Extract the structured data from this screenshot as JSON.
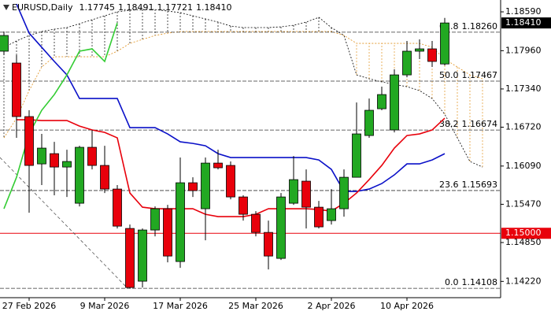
{
  "chart_data": {
    "type": "candlestick",
    "header": {
      "symbol": "EURUSD,Daily",
      "open": "1.17745",
      "high": "1.18491",
      "low": "1.17721",
      "close": "1.18410"
    },
    "categories": [
      null,
      null,
      "27 Feb 2026",
      null,
      null,
      null,
      null,
      null,
      "9 Mar 2026",
      null,
      null,
      null,
      null,
      null,
      "17 Mar 2026",
      null,
      null,
      null,
      null,
      null,
      "25 Mar 2026",
      null,
      null,
      null,
      null,
      null,
      "2 Apr 2026",
      null,
      null,
      null,
      null,
      null,
      "10 Apr 2026",
      null,
      null,
      null,
      null,
      null,
      null
    ],
    "open": [
      1.17952,
      1.1776,
      1.16892,
      1.16125,
      1.16291,
      1.16074,
      1.15487,
      1.16394,
      1.161,
      1.15717,
      1.15078,
      1.14223,
      1.15053,
      1.15398,
      1.14542,
      1.15819,
      1.15398,
      1.16138,
      1.161,
      1.15589,
      1.15308,
      1.15014,
      1.14593,
      1.15487,
      1.15845,
      1.15423,
      1.15206,
      1.15398,
      1.15908,
      1.16585,
      1.17019,
      1.16675,
      1.17568,
      1.17952,
      1.1799,
      1.17745,
      null,
      null,
      null
    ],
    "high": [
      1.18271,
      1.17888,
      1.16994,
      1.16611,
      1.16483,
      1.16355,
      1.16419,
      1.16675,
      1.16419,
      1.15781,
      1.15142,
      1.15078,
      1.15436,
      1.15461,
      1.16228,
      1.15908,
      1.16228,
      1.16355,
      1.16164,
      1.15615,
      1.15359,
      1.15206,
      1.15653,
      1.16253,
      1.16036,
      1.15525,
      1.15717,
      1.16036,
      1.17121,
      1.17185,
      1.17377,
      1.17658,
      1.18118,
      1.18143,
      1.18118,
      1.18491,
      null,
      null,
      null
    ],
    "low": [
      1.17888,
      1.16547,
      1.15334,
      1.15781,
      1.15615,
      1.15589,
      1.15436,
      1.16036,
      1.15653,
      1.15078,
      1.14108,
      1.14121,
      1.1495,
      1.14529,
      1.1444,
      1.15589,
      1.14887,
      1.16036,
      1.15551,
      1.15206,
      1.1495,
      1.14414,
      1.14567,
      1.15461,
      1.15078,
      1.15078,
      1.15142,
      1.1527,
      1.15908,
      1.16547,
      1.16994,
      1.16636,
      1.1753,
      1.17824,
      1.17696,
      1.17721,
      null,
      null,
      null
    ],
    "close": [
      1.18207,
      1.16892,
      1.161,
      1.16381,
      1.16074,
      1.16164,
      1.16394,
      1.161,
      1.15717,
      1.15116,
      1.14121,
      1.15053,
      1.15398,
      1.14631,
      1.15819,
      1.15691,
      1.16138,
      1.16062,
      1.15589,
      1.15308,
      1.15014,
      1.14631,
      1.15589,
      1.1587,
      1.15423,
      1.15104,
      1.15398,
      1.15908,
      1.16611,
      1.16994,
      1.17249,
      1.17568,
      1.17952,
      1.1799,
      1.17786,
      1.1841,
      null,
      null,
      null
    ],
    "up_color": "#22a822",
    "down_color": "#e8000b",
    "indicators": [
      {
        "color": "#0a10c8",
        "values": [
          null,
          1.18718,
          1.18245,
          1.18015,
          1.17786,
          1.17568,
          1.17185,
          1.17185,
          1.17185,
          1.17185,
          1.16713,
          1.16713,
          1.16713,
          1.16611,
          1.16483,
          1.16457,
          1.16419,
          1.16291,
          1.16228,
          1.16228,
          1.16228,
          1.16228,
          1.16228,
          1.16228,
          1.16228,
          1.16189,
          1.16036,
          1.15679,
          1.15679,
          1.15717,
          1.15806,
          1.15947,
          1.16125,
          1.16125,
          1.16189,
          1.16291,
          null,
          null,
          null
        ]
      },
      {
        "color": "#e8000b",
        "values": [
          null,
          1.16841,
          1.16841,
          1.16828,
          1.16828,
          1.16828,
          1.16738,
          1.16675,
          1.16636,
          1.16547,
          1.15653,
          1.15423,
          1.15398,
          1.15398,
          1.15398,
          1.15398,
          1.15308,
          1.1527,
          1.1527,
          1.1527,
          1.15308,
          1.15398,
          1.15398,
          1.15398,
          1.15398,
          1.15385,
          1.15359,
          1.15487,
          1.15653,
          1.1587,
          1.161,
          1.16381,
          1.16585,
          1.16611,
          1.16675,
          1.16866,
          null,
          null,
          null
        ]
      },
      {
        "color": "#33cc33",
        "values": [
          1.15398,
          1.15908,
          1.16611,
          1.16994,
          1.17249,
          1.17568,
          1.17952,
          1.1799,
          1.17786,
          1.1841,
          null,
          null,
          null,
          null,
          null,
          null,
          null,
          null,
          null,
          null,
          null,
          null,
          null,
          null,
          null,
          null,
          null,
          null,
          null,
          null,
          null,
          null,
          null,
          null,
          null,
          null,
          null,
          null,
          null
        ]
      }
    ],
    "cloud": {
      "span_a_color": "#000000",
      "span_b_color": "#e0901c",
      "span_a": [
        1.18015,
        1.18118,
        1.18207,
        1.18271,
        1.18309,
        1.18335,
        1.18398,
        1.18462,
        1.18526,
        1.1859,
        1.18616,
        1.18628,
        1.18628,
        1.18603,
        1.18577,
        1.18526,
        1.18475,
        1.18424,
        1.1836,
        1.18335,
        1.18335,
        1.18335,
        1.18347,
        1.18373,
        1.18424,
        1.18501,
        1.18335,
        1.18207,
        1.17568,
        1.17505,
        1.17454,
        1.17415,
        1.17377,
        1.17313,
        1.17185,
        1.1693,
        1.16547,
        1.16164,
        1.16074
      ],
      "span_b": [
        1.16547,
        1.16866,
        1.17313,
        1.17696,
        1.17862,
        1.17862,
        1.17862,
        1.17862,
        1.17862,
        1.17952,
        1.18079,
        1.18143,
        1.18207,
        1.18245,
        1.18271,
        1.18271,
        1.18271,
        1.18271,
        1.18271,
        1.18271,
        1.18271,
        1.18271,
        1.18271,
        1.18271,
        1.18271,
        1.18271,
        1.18271,
        1.18207,
        1.18079,
        1.18079,
        1.18079,
        1.18079,
        1.18079,
        1.18079,
        1.18015,
        1.17824,
        1.17696,
        1.17568,
        1.17505
      ]
    },
    "fib_levels": [
      {
        "level": "0.0",
        "value": 1.14108,
        "label": "1.14108"
      },
      {
        "level": "23.6",
        "value": 1.15693,
        "label": "1.15693"
      },
      {
        "level": "38.2",
        "value": 1.16674,
        "label": "1.16674"
      },
      {
        "level": "50.0",
        "value": 1.17467,
        "label": "1.17467"
      },
      {
        "level": "61.8",
        "value": 1.1826,
        "label": "1.18260"
      }
    ],
    "alert_line": {
      "value": 1.15,
      "label": "1.15000",
      "color": "#e8000b"
    },
    "ylim": [
      1.13956,
      1.18782
    ],
    "yticks": [
      {
        "value": 1.1859,
        "label": "1.18590"
      },
      {
        "value": 1.1796,
        "label": "1.17960"
      },
      {
        "value": 1.1734,
        "label": "1.17340"
      },
      {
        "value": 1.1672,
        "label": "1.16720"
      },
      {
        "value": 1.1609,
        "label": "1.16090"
      },
      {
        "value": 1.1547,
        "label": "1.15470"
      },
      {
        "value": 1.1485,
        "label": "1.14850"
      },
      {
        "value": 1.1422,
        "label": "1.14220"
      }
    ]
  }
}
